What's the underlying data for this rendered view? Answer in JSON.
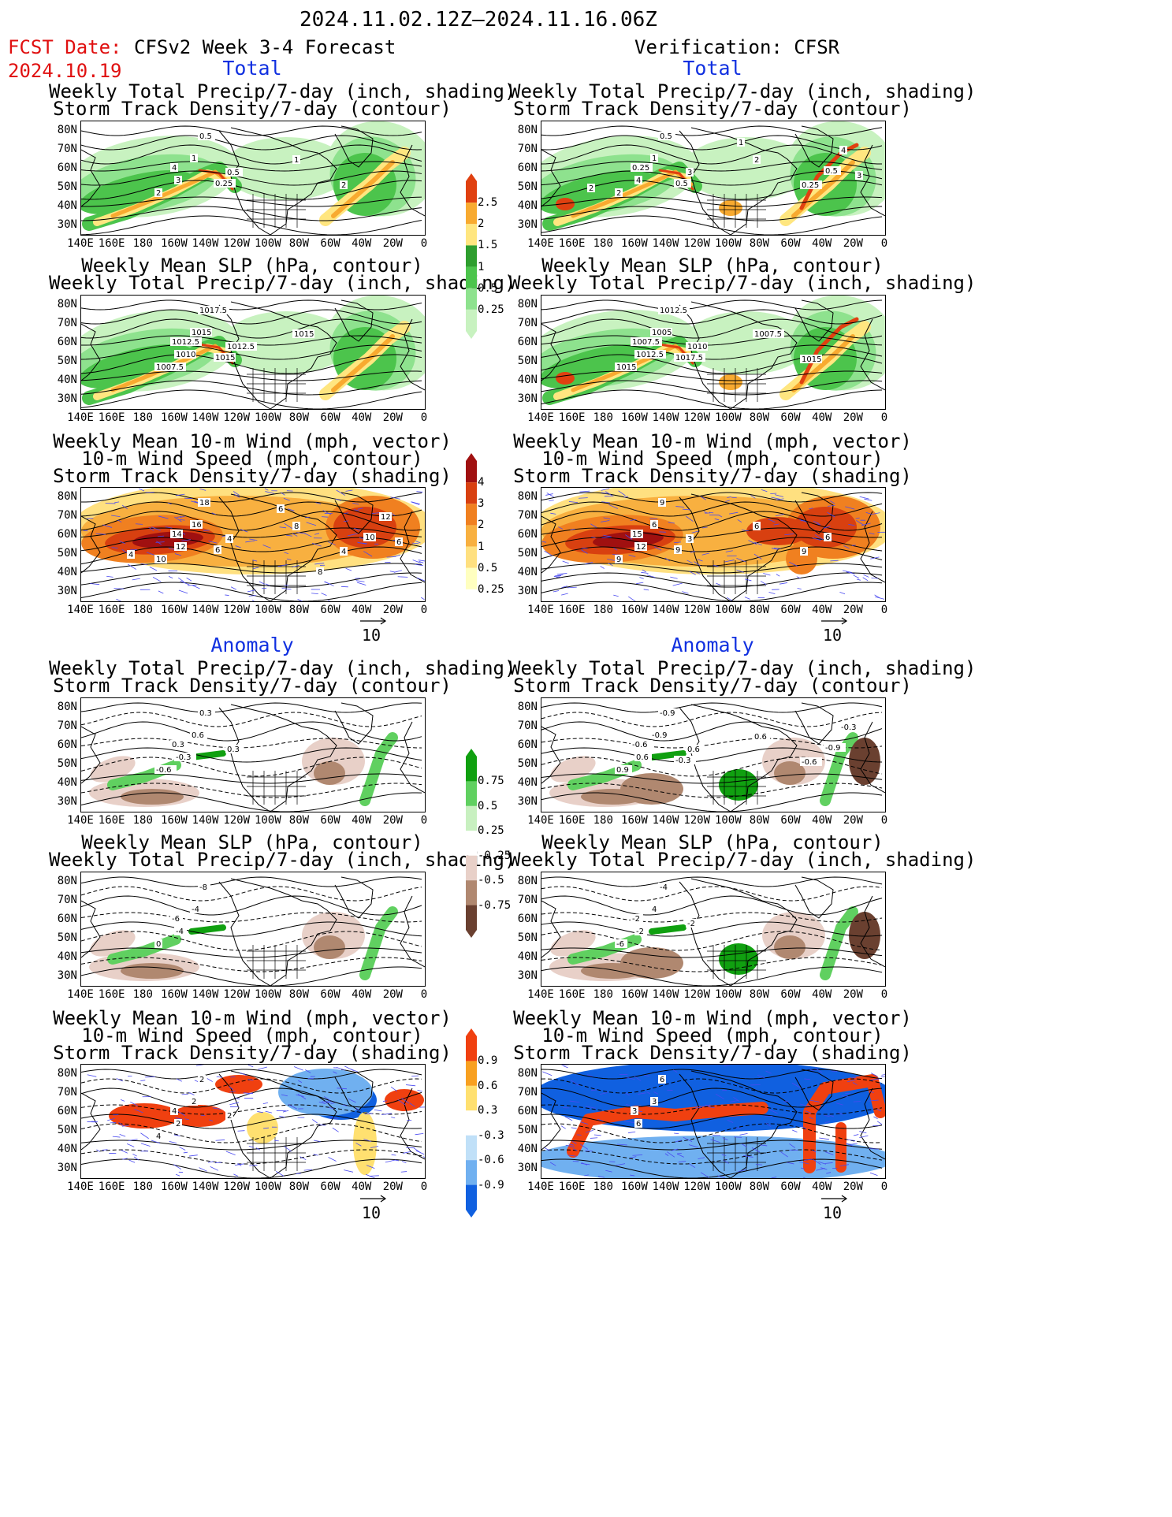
{
  "header": {
    "date_range": "2024.11.02.12Z—2024.11.16.06Z",
    "fcst_date_label": "FCST Date:",
    "fcst_date_value": "2024.10.19",
    "model_title": "CFSv2 Week 3-4 Forecast",
    "verification_title": "Verification: CFSR"
  },
  "sections": {
    "total": "Total",
    "anomaly": "Anomaly"
  },
  "panel_titles": {
    "precip_storm": [
      "Weekly Total Precip/7-day (inch, shading)",
      "Storm Track Density/7-day (contour)"
    ],
    "slp_precip": [
      "Weekly Mean SLP (hPa, contour)",
      "Weekly Total Precip/7-day (inch, shading)"
    ],
    "wind_storm": [
      "Weekly Mean 10-m Wind (mph, vector)",
      "10-m Wind Speed (mph, contour)",
      "Storm Track Density/7-day (shading)"
    ]
  },
  "axes": {
    "lat_labels": [
      "80N",
      "70N",
      "60N",
      "50N",
      "40N",
      "30N"
    ],
    "lon_labels": [
      "140E",
      "160E",
      "180",
      "160W",
      "140W",
      "120W",
      "100W",
      "80W",
      "60W",
      "40W",
      "20W",
      "0"
    ]
  },
  "vector_reference": "10",
  "colorbars": {
    "precip_total": [
      "2.5",
      "2",
      "1.5",
      "1",
      "0.5",
      "0.25"
    ],
    "storm_total": [
      "4",
      "3",
      "2",
      "1",
      "0.5",
      "0.25"
    ],
    "precip_anom": [
      "0.75",
      "0.5",
      "0.25",
      "-0.25",
      "-0.5",
      "-0.75"
    ],
    "storm_anom": [
      "0.9",
      "0.6",
      "0.3",
      "-0.3",
      "-0.6",
      "-0.9"
    ]
  },
  "colors": {
    "precip": [
      "#2e9e2e",
      "#4cc44c",
      "#8ee28e",
      "#c8f2c0",
      "#ffe680",
      "#f8aa30",
      "#e04010"
    ],
    "storm": [
      "#ffffc0",
      "#ffe080",
      "#f8b040",
      "#f08020",
      "#d84010",
      "#a01010"
    ],
    "anom_brown": [
      "#e8d0c8",
      "#b08870",
      "#6a4030"
    ],
    "anom_green": [
      "#c8f0c0",
      "#60d060",
      "#10a010"
    ],
    "anom_warm": [
      "#ffe070",
      "#f8a020",
      "#f04010"
    ],
    "anom_cool": [
      "#c0e0f8",
      "#70b0f0",
      "#1060e0"
    ]
  },
  "contour_labels": {
    "p1l": [
      "0.5",
      "1",
      "4",
      "3",
      "2",
      "0.5",
      "0.25",
      "1",
      "2"
    ],
    "p1r": [
      "0.5",
      "1",
      "0.25",
      "4",
      "2",
      "3",
      "0.5",
      "2",
      "0.25",
      "0.5",
      "4",
      "3",
      "2",
      "1"
    ],
    "p2l": [
      "1017.5",
      "1015",
      "1012.5",
      "1010",
      "1007.5",
      "1012.5",
      "1015",
      "1015"
    ],
    "p2r": [
      "1012.5",
      "1005",
      "1007.5",
      "1012.5",
      "1015",
      "1010",
      "1017.5",
      "1007.5",
      "1015"
    ],
    "p3l": [
      "18",
      "16",
      "14",
      "12",
      "10",
      "4",
      "6",
      "8",
      "4",
      "10",
      "12",
      "6",
      "4",
      "6",
      "8"
    ],
    "p3r": [
      "9",
      "6",
      "15",
      "12",
      "9",
      "3",
      "9",
      "6",
      "9",
      "6"
    ],
    "p4l": [
      "0.3",
      "0.6",
      "0.3",
      "-0.3",
      "-0.6",
      "0.3"
    ],
    "p4r": [
      "-0.9",
      "-0.9",
      "-0.6",
      "0.6",
      "0.9",
      "0.6",
      "-0.3",
      "0.6",
      "-0.6",
      "-0.9",
      "-0.3"
    ],
    "p5l": [
      "-8",
      "-4",
      "-6",
      "-4",
      "0"
    ],
    "p5r": [
      "-4",
      "4",
      "-2",
      "-2",
      "-6",
      "-2"
    ],
    "p6l": [
      "2",
      "2",
      "4",
      "2",
      "4",
      "2"
    ],
    "p6r": [
      "6",
      "3",
      "3",
      "6"
    ]
  }
}
